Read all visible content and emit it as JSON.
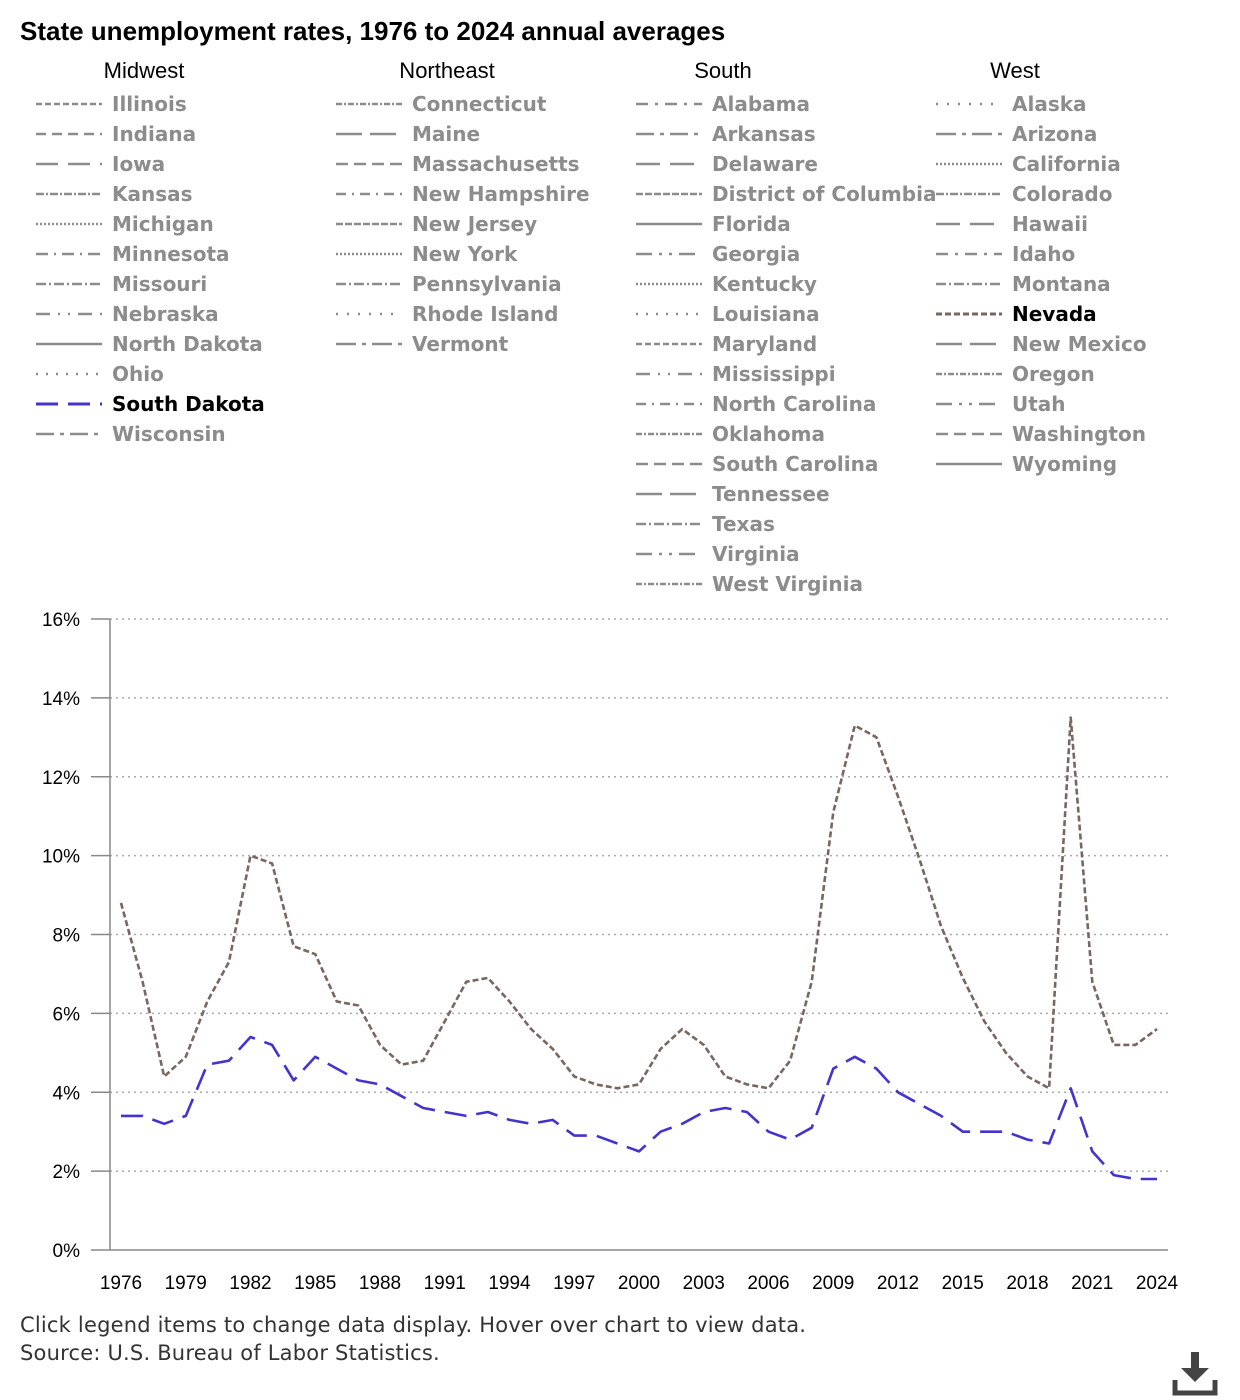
{
  "title": "State unemployment rates, 1976 to 2024 annual averages",
  "notes": {
    "instructions": "Click legend items to change data display. Hover over chart to view data.",
    "source": "Source: U.S. Bureau of Labor Statistics."
  },
  "legend": {
    "regions": [
      {
        "name": "Midwest",
        "states": [
          {
            "label": "Illinois",
            "dash": "6,3"
          },
          {
            "label": "Indiana",
            "dash": "10,6"
          },
          {
            "label": "Iowa",
            "dash": "22,10"
          },
          {
            "label": "Kansas",
            "dash": "8,2,2,2"
          },
          {
            "label": "Michigan",
            "dash": "2,2"
          },
          {
            "label": "Minnesota",
            "dash": "12,6,2,6"
          },
          {
            "label": "Missouri",
            "dash": "10,3,2,3"
          },
          {
            "label": "Nebraska",
            "dash": "14,8,2,8,2,8"
          },
          {
            "label": "North Dakota",
            "dash": ""
          },
          {
            "label": "Ohio",
            "dash": "2,8"
          },
          {
            "label": "South Dakota",
            "dash": "22,10",
            "color": "#4433cc",
            "active": true
          },
          {
            "label": "Wisconsin",
            "dash": "18,6,4,6"
          }
        ]
      },
      {
        "name": "Northeast",
        "states": [
          {
            "label": "Connecticut",
            "dash": "6,2,2,2"
          },
          {
            "label": "Maine",
            "dash": "26,8"
          },
          {
            "label": "Massachusetts",
            "dash": "12,6"
          },
          {
            "label": "New Hampshire",
            "dash": "10,6,2,6"
          },
          {
            "label": "New Jersey",
            "dash": "7,2"
          },
          {
            "label": "New York",
            "dash": "2,2"
          },
          {
            "label": "Pennsylvania",
            "dash": "10,3,2,3"
          },
          {
            "label": "Rhode Island",
            "dash": "2,9"
          },
          {
            "label": "Vermont",
            "dash": "20,6,4,6"
          }
        ]
      },
      {
        "name": "South",
        "states": [
          {
            "label": "Alabama",
            "dash": "12,7,3,7"
          },
          {
            "label": "Arkansas",
            "dash": "18,6,4,6"
          },
          {
            "label": "Delaware",
            "dash": "24,10"
          },
          {
            "label": "District of Columbia",
            "dash": "7,2"
          },
          {
            "label": "Florida",
            "dash": ""
          },
          {
            "label": "Georgia",
            "dash": "16,7,3,7,3,7"
          },
          {
            "label": "Kentucky",
            "dash": "2,2"
          },
          {
            "label": "Louisiana",
            "dash": "2,8"
          },
          {
            "label": "Maryland",
            "dash": "6,3"
          },
          {
            "label": "Mississippi",
            "dash": "14,8,2,8,2,8"
          },
          {
            "label": "North Carolina",
            "dash": "10,6,2,6"
          },
          {
            "label": "Oklahoma",
            "dash": "6,2,2,2"
          },
          {
            "label": "South Carolina",
            "dash": "12,6"
          },
          {
            "label": "Tennessee",
            "dash": "26,8"
          },
          {
            "label": "Texas",
            "dash": "10,3,2,3"
          },
          {
            "label": "Virginia",
            "dash": "16,7,3,7,3,7"
          },
          {
            "label": "West Virginia",
            "dash": "6,2,2,2"
          }
        ]
      },
      {
        "name": "West",
        "states": [
          {
            "label": "Alaska",
            "dash": "2,9"
          },
          {
            "label": "Arizona",
            "dash": "20,6,4,6"
          },
          {
            "label": "California",
            "dash": "2,2"
          },
          {
            "label": "Colorado",
            "dash": "8,2,2,2"
          },
          {
            "label": "Hawaii",
            "dash": "24,10"
          },
          {
            "label": "Idaho",
            "dash": "12,7,3,7"
          },
          {
            "label": "Montana",
            "dash": "10,3,2,3"
          },
          {
            "label": "Nevada",
            "dash": "6,3",
            "color": "#7a6660",
            "active": true
          },
          {
            "label": "New Mexico",
            "dash": "26,8"
          },
          {
            "label": "Oregon",
            "dash": "6,2,2,2"
          },
          {
            "label": "Utah",
            "dash": "16,7,3,7,3,7"
          },
          {
            "label": "Washington",
            "dash": "12,6"
          },
          {
            "label": "Wyoming",
            "dash": ""
          }
        ]
      }
    ]
  },
  "chart_data": {
    "type": "line",
    "xlabel": "",
    "ylabel": "",
    "xlim": [
      1976,
      2024
    ],
    "ylim": [
      0,
      16
    ],
    "y_ticks": [
      "0%",
      "2%",
      "4%",
      "6%",
      "8%",
      "10%",
      "12%",
      "14%",
      "16%"
    ],
    "x_ticks": [
      "1976",
      "1979",
      "1982",
      "1985",
      "1988",
      "1991",
      "1994",
      "1997",
      "2000",
      "2003",
      "2006",
      "2009",
      "2012",
      "2015",
      "2018",
      "2021",
      "2024"
    ],
    "grid": "horizontal dotted",
    "x": [
      1976,
      1977,
      1978,
      1979,
      1980,
      1981,
      1982,
      1983,
      1984,
      1985,
      1986,
      1987,
      1988,
      1989,
      1990,
      1991,
      1992,
      1993,
      1994,
      1995,
      1996,
      1997,
      1998,
      1999,
      2000,
      2001,
      2002,
      2003,
      2004,
      2005,
      2006,
      2007,
      2008,
      2009,
      2010,
      2011,
      2012,
      2013,
      2014,
      2015,
      2016,
      2017,
      2018,
      2019,
      2020,
      2021,
      2022,
      2023,
      2024
    ],
    "series": [
      {
        "name": "Nevada",
        "color": "#7a6660",
        "dash": "6,3",
        "values": [
          8.8,
          6.8,
          4.4,
          4.9,
          6.3,
          7.3,
          10.0,
          9.8,
          7.7,
          7.5,
          6.3,
          6.2,
          5.2,
          4.7,
          4.8,
          5.8,
          6.8,
          6.9,
          6.3,
          5.6,
          5.1,
          4.4,
          4.2,
          4.1,
          4.2,
          5.1,
          5.6,
          5.2,
          4.4,
          4.2,
          4.1,
          4.8,
          6.8,
          11.1,
          13.3,
          13.0,
          11.5,
          9.9,
          8.2,
          6.9,
          5.8,
          5.0,
          4.4,
          4.1,
          13.5,
          6.8,
          5.2,
          5.2,
          5.6
        ]
      },
      {
        "name": "South Dakota",
        "color": "#4433cc",
        "dash": "22,10",
        "values": [
          3.4,
          3.4,
          3.2,
          3.4,
          4.7,
          4.8,
          5.4,
          5.2,
          4.3,
          4.9,
          4.6,
          4.3,
          4.2,
          3.9,
          3.6,
          3.5,
          3.4,
          3.5,
          3.3,
          3.2,
          3.3,
          2.9,
          2.9,
          2.7,
          2.5,
          3.0,
          3.2,
          3.5,
          3.6,
          3.5,
          3.0,
          2.8,
          3.1,
          4.6,
          4.9,
          4.6,
          4.0,
          3.7,
          3.4,
          3.0,
          3.0,
          3.0,
          2.8,
          2.7,
          4.1,
          2.5,
          1.9,
          1.8,
          1.8
        ]
      }
    ]
  }
}
